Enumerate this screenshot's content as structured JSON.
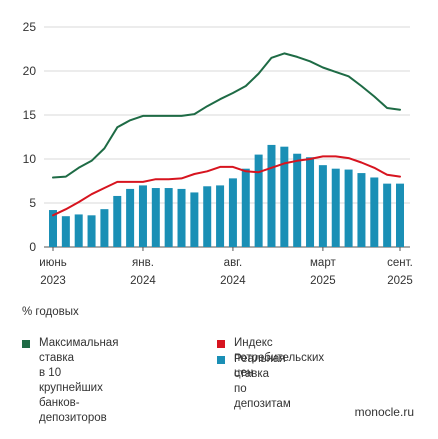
{
  "chart_data": {
    "type": "bar+line",
    "y_ticks": [
      "0",
      "5",
      "10",
      "15",
      "20",
      "25"
    ],
    "ylim": [
      0,
      25
    ],
    "x_tick_labels": [
      {
        "month": "июнь",
        "year": "2023"
      },
      {
        "month": "янв.",
        "year": "2024"
      },
      {
        "month": "авг.",
        "year": "2024"
      },
      {
        "month": "март",
        "year": "2025"
      },
      {
        "month": "сент.",
        "year": "2025"
      }
    ],
    "x_tick_index": [
      0,
      7,
      14,
      21,
      27
    ],
    "bars": {
      "name": "Реальная ставка по депозитам",
      "color": "#1a8fb5",
      "values": [
        4.2,
        3.5,
        3.7,
        3.6,
        4.3,
        5.8,
        6.6,
        7.0,
        6.7,
        6.7,
        6.6,
        6.2,
        6.9,
        7.0,
        7.8,
        8.9,
        10.5,
        11.6,
        11.4,
        10.6,
        10.2,
        9.3,
        8.9,
        8.8,
        8.4,
        7.9,
        7.2,
        7.2
      ]
    },
    "series": [
      {
        "name": "Максимальная ставка в 10 крупнейших банков-депозиторов",
        "color": "#1e6b45",
        "values": [
          7.9,
          8.0,
          9.0,
          9.8,
          11.2,
          13.6,
          14.4,
          14.9,
          14.9,
          14.9,
          14.9,
          15.1,
          16.0,
          16.8,
          17.5,
          18.3,
          19.7,
          21.5,
          22.0,
          21.6,
          21.1,
          20.4,
          19.9,
          19.4,
          18.3,
          17.1,
          15.8,
          15.6
        ]
      },
      {
        "name": "Индекс потребительских цен",
        "color": "#d7141f",
        "values": [
          3.6,
          4.3,
          5.1,
          6.0,
          6.7,
          7.4,
          7.4,
          7.4,
          7.7,
          7.7,
          7.8,
          8.3,
          8.6,
          9.1,
          9.1,
          8.6,
          8.5,
          9.0,
          9.5,
          9.8,
          10.0,
          10.3,
          10.3,
          10.1,
          9.6,
          9.0,
          8.2,
          8.0
        ]
      }
    ]
  },
  "unit_label": "% годовых",
  "legend": [
    {
      "label": "Максимальная ставка\nв 10 крупнейших\nбанков-депозиторов",
      "color": "#1e6b45"
    },
    {
      "label": "Индекс потребительских цен",
      "color": "#d7141f"
    },
    {
      "label": "Реальная ставка\nпо депозитам",
      "color": "#1a8fb5"
    }
  ],
  "source": "monocle.ru"
}
